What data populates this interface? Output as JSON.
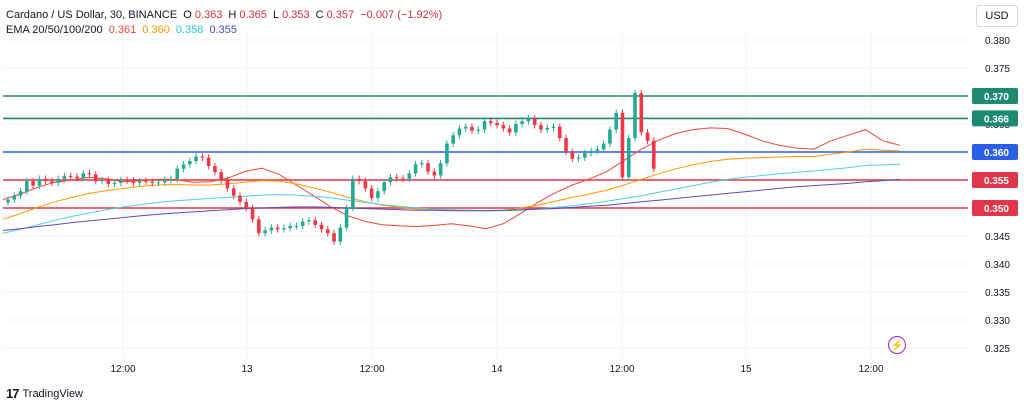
{
  "header": {
    "symbol": "Cardano / US Dollar, 30, BINANCE",
    "o_label": "O",
    "o_value": "0.363",
    "h_label": "H",
    "h_value": "0.365",
    "l_label": "L",
    "l_value": "0.353",
    "c_label": "C",
    "c_value": "0.357",
    "change": "−0.007 (−1.92%)",
    "ema_label": "EMA 20/50/100/200",
    "ema20": "0.361",
    "ema50": "0.360",
    "ema100": "0.358",
    "ema200": "0.355"
  },
  "currency_button": "USD",
  "brand": "TradingView",
  "chart_data": {
    "type": "line",
    "title": "Cardano / US Dollar, 30, BINANCE",
    "ylim": [
      0.3215,
      0.3845
    ],
    "y_ticks": [
      "0.380",
      "0.375",
      "0.370",
      "0.365",
      "0.360",
      "0.355",
      "0.350",
      "0.345",
      "0.340",
      "0.335",
      "0.330",
      "0.325"
    ],
    "x_ticks": [
      "12:00",
      "13",
      "12:00",
      "14",
      "12:00",
      "15",
      "12:00"
    ],
    "horizontal_levels": [
      {
        "value": 0.37,
        "label": "0.370",
        "color": "#1e8a72"
      },
      {
        "value": 0.366,
        "label": "0.366",
        "color": "#1e8a72"
      },
      {
        "value": 0.36,
        "label": "0.360",
        "color": "#2a5ee8"
      },
      {
        "value": 0.355,
        "label": "0.355",
        "color": "#e0354a"
      },
      {
        "value": 0.35,
        "label": "0.350",
        "color": "#e0354a"
      }
    ],
    "candle_colors": {
      "up": "#22ab94",
      "down": "#f23645"
    },
    "closes": [
      0.3515,
      0.3522,
      0.353,
      0.3548,
      0.354,
      0.3552,
      0.3548,
      0.3545,
      0.3552,
      0.3557,
      0.3556,
      0.3553,
      0.3562,
      0.356,
      0.3548,
      0.355,
      0.3543,
      0.3545,
      0.355,
      0.3549,
      0.3545,
      0.3548,
      0.3547,
      0.3545,
      0.3546,
      0.355,
      0.3552,
      0.357,
      0.3578,
      0.3584,
      0.3592,
      0.359,
      0.3575,
      0.3564,
      0.355,
      0.3535,
      0.3522,
      0.3511,
      0.35,
      0.348,
      0.3455,
      0.346,
      0.3465,
      0.3462,
      0.3464,
      0.3468,
      0.3468,
      0.3476,
      0.3478,
      0.347,
      0.3462,
      0.3455,
      0.344,
      0.3465,
      0.35,
      0.3552,
      0.3548,
      0.3535,
      0.3518,
      0.353,
      0.3546,
      0.3555,
      0.3553,
      0.3552,
      0.3562,
      0.3578,
      0.358,
      0.3565,
      0.3558,
      0.358,
      0.3615,
      0.363,
      0.3642,
      0.3645,
      0.3638,
      0.364,
      0.3655,
      0.3652,
      0.3648,
      0.3642,
      0.3635,
      0.365,
      0.3655,
      0.366,
      0.3648,
      0.364,
      0.3643,
      0.3645,
      0.3625,
      0.36,
      0.3588,
      0.359,
      0.3598,
      0.3602,
      0.3605,
      0.3615,
      0.364,
      0.367,
      0.3555,
      0.3625,
      0.3705,
      0.3635,
      0.362,
      0.357
    ],
    "series": [
      {
        "name": "EMA 20",
        "color": "#f44336",
        "values": [
          0.3515,
          0.3525,
          0.3537,
          0.3546,
          0.355,
          0.3555,
          0.3552,
          0.3547,
          0.3549,
          0.3551,
          0.3551,
          0.3546,
          0.3547,
          0.3553,
          0.3565,
          0.3571,
          0.356,
          0.3541,
          0.3522,
          0.3502,
          0.3486,
          0.3476,
          0.347,
          0.3468,
          0.3467,
          0.3469,
          0.3472,
          0.3468,
          0.3463,
          0.3472,
          0.349,
          0.351,
          0.3527,
          0.3541,
          0.3552,
          0.3565,
          0.3585,
          0.3605,
          0.3621,
          0.3633,
          0.364,
          0.3643,
          0.3642,
          0.3632,
          0.362,
          0.3612,
          0.3607,
          0.3605,
          0.362,
          0.363,
          0.364,
          0.362,
          0.3612
        ]
      },
      {
        "name": "EMA 50",
        "color": "#ff9800",
        "values": [
          0.348,
          0.349,
          0.3501,
          0.3511,
          0.3519,
          0.3526,
          0.3531,
          0.3535,
          0.3539,
          0.3541,
          0.3542,
          0.3541,
          0.3541,
          0.3543,
          0.3546,
          0.3549,
          0.3548,
          0.3543,
          0.3536,
          0.3528,
          0.3519,
          0.3511,
          0.3505,
          0.3501,
          0.3498,
          0.3497,
          0.3497,
          0.3496,
          0.3495,
          0.3496,
          0.35,
          0.3505,
          0.3512,
          0.3519,
          0.3525,
          0.3532,
          0.3541,
          0.3551,
          0.3561,
          0.357,
          0.3577,
          0.3583,
          0.3587,
          0.3589,
          0.359,
          0.3591,
          0.3592,
          0.3592,
          0.3596,
          0.36,
          0.3605,
          0.3603,
          0.3602
        ]
      },
      {
        "name": "EMA 100",
        "color": "#4dd0e1",
        "values": [
          0.3455,
          0.3462,
          0.347,
          0.3478,
          0.3485,
          0.3491,
          0.3497,
          0.3502,
          0.3506,
          0.351,
          0.3513,
          0.3515,
          0.3517,
          0.3519,
          0.3521,
          0.3523,
          0.3524,
          0.3523,
          0.3521,
          0.3518,
          0.3514,
          0.351,
          0.3506,
          0.3503,
          0.35,
          0.3498,
          0.3497,
          0.3496,
          0.3495,
          0.3495,
          0.3496,
          0.3498,
          0.3501,
          0.3504,
          0.3508,
          0.3512,
          0.3517,
          0.3522,
          0.3528,
          0.3534,
          0.354,
          0.3546,
          0.3551,
          0.3555,
          0.3558,
          0.3561,
          0.3564,
          0.3566,
          0.3569,
          0.3572,
          0.3576,
          0.3577,
          0.3578
        ]
      },
      {
        "name": "EMA 200",
        "color": "#5c4db1",
        "values": [
          0.346,
          0.3463,
          0.3467,
          0.347,
          0.3474,
          0.3477,
          0.348,
          0.3483,
          0.3486,
          0.3489,
          0.3491,
          0.3493,
          0.3495,
          0.3497,
          0.3499,
          0.35,
          0.3501,
          0.3502,
          0.3502,
          0.3501,
          0.35,
          0.3499,
          0.3498,
          0.3497,
          0.3496,
          0.3496,
          0.3495,
          0.3495,
          0.3495,
          0.3496,
          0.3497,
          0.3498,
          0.3499,
          0.3501,
          0.3503,
          0.3505,
          0.3508,
          0.3511,
          0.3514,
          0.3517,
          0.352,
          0.3523,
          0.3526,
          0.3529,
          0.3532,
          0.3535,
          0.3538,
          0.354,
          0.3542,
          0.3544,
          0.3547,
          0.3549,
          0.3551
        ]
      }
    ]
  }
}
